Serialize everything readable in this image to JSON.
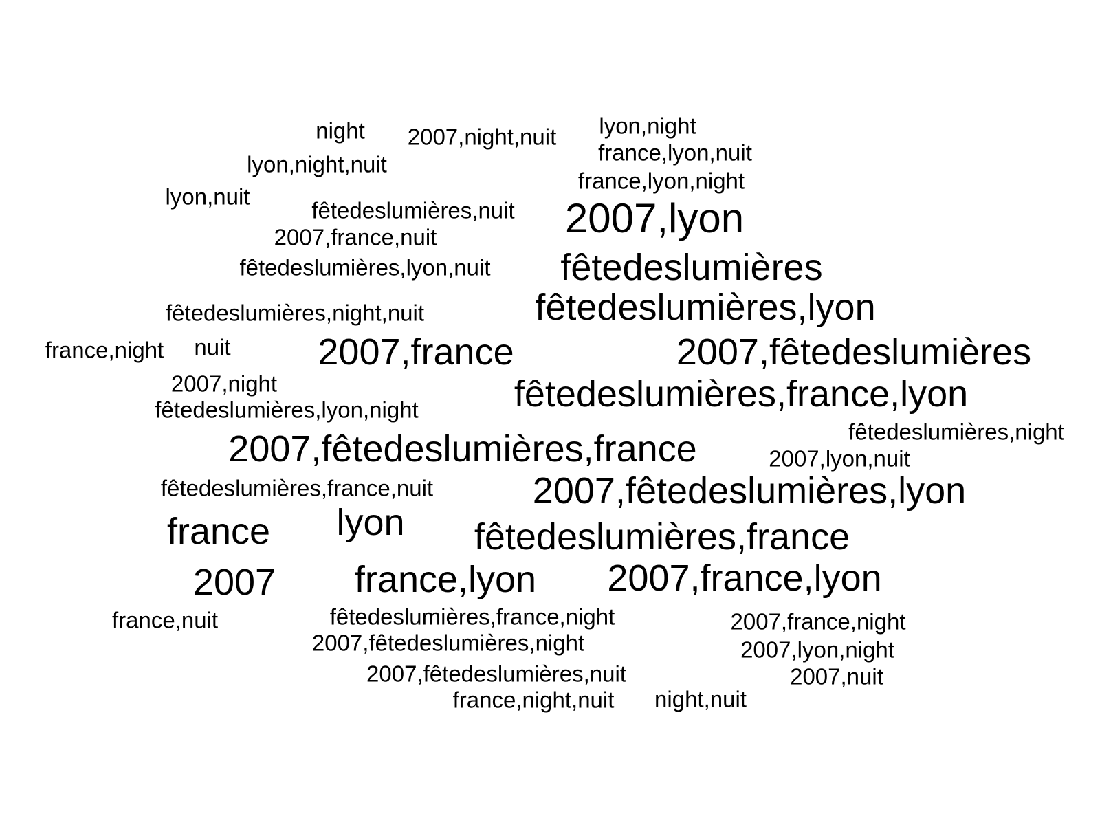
{
  "style": {
    "background": "#ffffff",
    "text_color": "#000000"
  },
  "words": [
    {
      "text": "night",
      "weight": 1
    },
    {
      "text": "2007,night,nuit",
      "weight": 1
    },
    {
      "text": "lyon,night",
      "weight": 1
    },
    {
      "text": "france,lyon,nuit",
      "weight": 1
    },
    {
      "text": "lyon,night,nuit",
      "weight": 1
    },
    {
      "text": "france,lyon,night",
      "weight": 1
    },
    {
      "text": "lyon,nuit",
      "weight": 1
    },
    {
      "text": "fêtedeslumières,nuit",
      "weight": 1
    },
    {
      "text": "2007,lyon",
      "weight": 3
    },
    {
      "text": "2007,france,nuit",
      "weight": 1
    },
    {
      "text": "fêtedeslumières",
      "weight": 3
    },
    {
      "text": "fêtedeslumières,lyon,nuit",
      "weight": 1
    },
    {
      "text": "fêtedeslumières,lyon",
      "weight": 3
    },
    {
      "text": "fêtedeslumières,night,nuit",
      "weight": 1
    },
    {
      "text": "france,night",
      "weight": 1
    },
    {
      "text": "nuit",
      "weight": 1
    },
    {
      "text": "2007,france",
      "weight": 3
    },
    {
      "text": "2007,fêtedeslumières",
      "weight": 3
    },
    {
      "text": "2007,night",
      "weight": 1
    },
    {
      "text": "fêtedeslumières,france,lyon",
      "weight": 3
    },
    {
      "text": "fêtedeslumières,lyon,night",
      "weight": 1
    },
    {
      "text": "fêtedeslumières,night",
      "weight": 1
    },
    {
      "text": "2007,fêtedeslumières,france",
      "weight": 3
    },
    {
      "text": "2007,lyon,nuit",
      "weight": 1
    },
    {
      "text": "fêtedeslumières,france,nuit",
      "weight": 1
    },
    {
      "text": "2007,fêtedeslumières,lyon",
      "weight": 3
    },
    {
      "text": "lyon",
      "weight": 3
    },
    {
      "text": "france",
      "weight": 3
    },
    {
      "text": "fêtedeslumières,france",
      "weight": 3
    },
    {
      "text": "2007",
      "weight": 3
    },
    {
      "text": "france,lyon",
      "weight": 3
    },
    {
      "text": "2007,france,lyon",
      "weight": 3
    },
    {
      "text": "france,nuit",
      "weight": 1
    },
    {
      "text": "fêtedeslumières,france,night",
      "weight": 1
    },
    {
      "text": "2007,france,night",
      "weight": 1
    },
    {
      "text": "2007,fêtedeslumières,night",
      "weight": 1
    },
    {
      "text": "2007,lyon,night",
      "weight": 1
    },
    {
      "text": "2007,fêtedeslumières,nuit",
      "weight": 1
    },
    {
      "text": "2007,nuit",
      "weight": 1
    },
    {
      "text": "france,night,nuit",
      "weight": 1
    },
    {
      "text": "night,nuit",
      "weight": 1
    }
  ]
}
